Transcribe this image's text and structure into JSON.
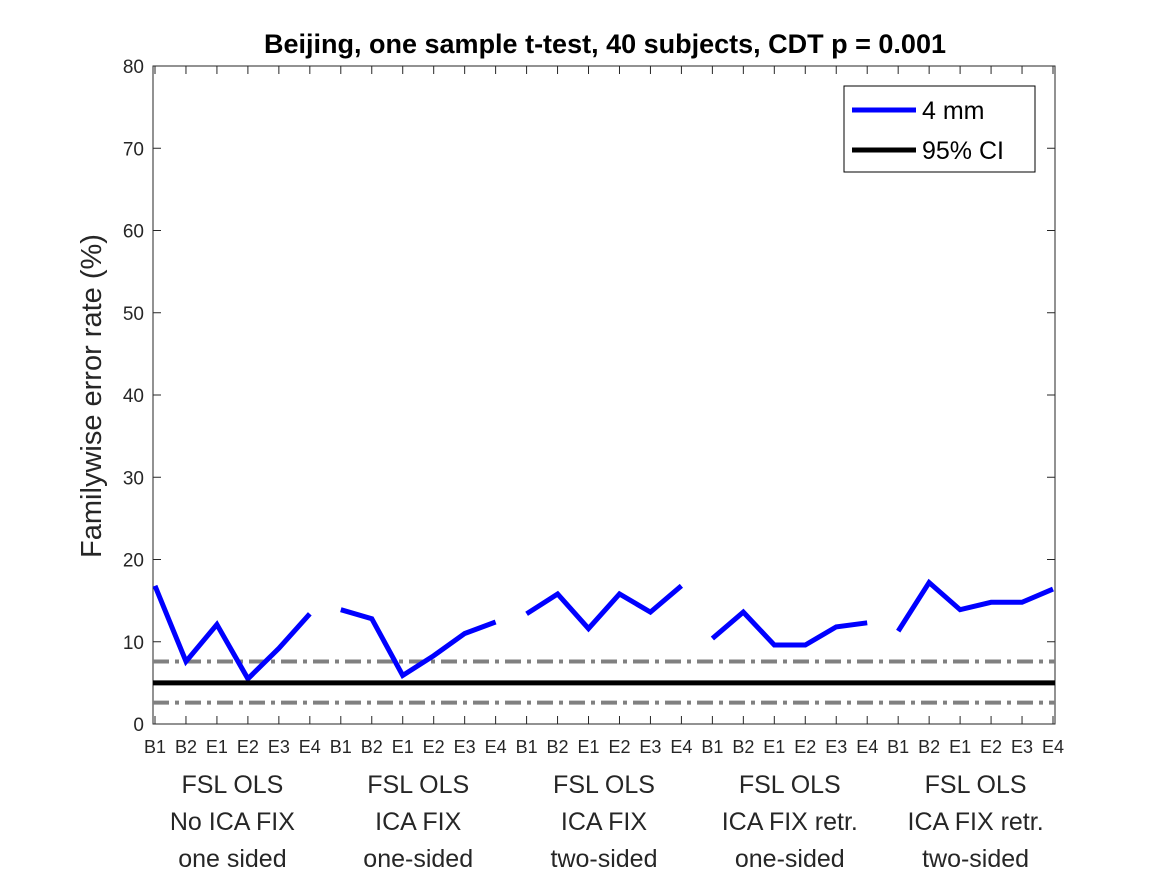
{
  "chart_data": {
    "type": "line",
    "title": "Beijing, one sample t-test, 40 subjects, CDT p = 0.001",
    "xlabel": "",
    "ylabel": "Familywise error rate (%)",
    "ylim": [
      0,
      80
    ],
    "yticks": [
      "0",
      "10",
      "20",
      "30",
      "40",
      "50",
      "60",
      "70",
      "80"
    ],
    "categories": [
      "B1",
      "B2",
      "E1",
      "E2",
      "E3",
      "E4",
      "B1",
      "B2",
      "E1",
      "E2",
      "E3",
      "E4",
      "B1",
      "B2",
      "E1",
      "E2",
      "E3",
      "E4",
      "B1",
      "B2",
      "E1",
      "E2",
      "E3",
      "E4",
      "B1",
      "B2",
      "E1",
      "E2",
      "E3",
      "E4"
    ],
    "groups": [
      {
        "lines": [
          "FSL OLS",
          "No ICA FIX",
          "one sided"
        ]
      },
      {
        "lines": [
          "FSL OLS",
          "ICA FIX",
          "one-sided"
        ]
      },
      {
        "lines": [
          "FSL OLS",
          "ICA FIX",
          "two-sided"
        ]
      },
      {
        "lines": [
          "FSL OLS",
          "ICA FIX retr.",
          "one-sided"
        ]
      },
      {
        "lines": [
          "FSL OLS",
          "ICA FIX retr.",
          "two-sided"
        ]
      }
    ],
    "series": [
      {
        "name": "4 mm",
        "color": "#0000ff",
        "segments": [
          [
            16.8,
            7.6,
            12.1,
            5.5,
            9.2,
            13.4
          ],
          [
            13.9,
            12.8,
            5.9,
            8.3,
            11.0,
            12.4
          ],
          [
            13.4,
            15.8,
            11.6,
            15.8,
            13.6,
            16.8
          ],
          [
            10.4,
            13.6,
            9.6,
            9.6,
            11.8,
            12.3
          ],
          [
            11.3,
            17.2,
            13.9,
            14.8,
            14.8,
            16.4
          ]
        ]
      },
      {
        "name": "95% CI",
        "color": "#000000",
        "value": 5.0
      }
    ],
    "ci_bounds": {
      "lower": 2.6,
      "upper": 7.6,
      "color": "#808080"
    },
    "legend_position": "top-right",
    "grid": false
  }
}
